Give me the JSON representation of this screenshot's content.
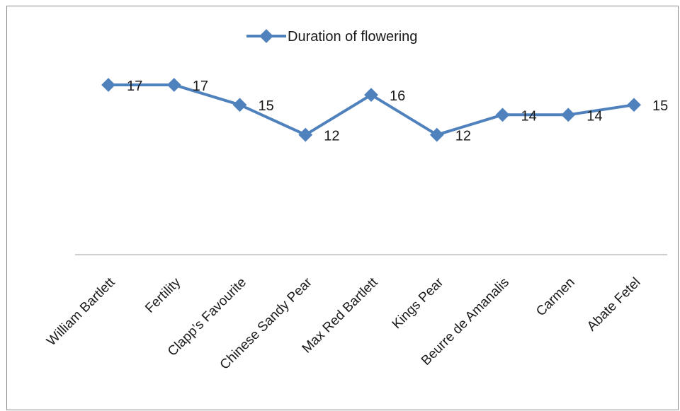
{
  "chart_data": {
    "type": "line",
    "categories": [
      "William Bartlett",
      "Fertility",
      "Clapp’s Favourite",
      "Chinese Sandy Pear",
      "Max Red Bartlett",
      "Kings Pear",
      "Beurre de Amanalis",
      "Carmen",
      "Abate Fetel"
    ],
    "series": [
      {
        "name": "Duration of flowering",
        "values": [
          17,
          17,
          15,
          12,
          16,
          12,
          14,
          14,
          15
        ],
        "color": "#4f81bd"
      }
    ],
    "data_labels": [
      "17",
      "17",
      "15",
      "12",
      "16",
      "12",
      "14",
      "14",
      "15"
    ],
    "ylim": [
      0,
      21
    ],
    "y_axis_visible": false,
    "grid": false,
    "legend_position": "top"
  }
}
